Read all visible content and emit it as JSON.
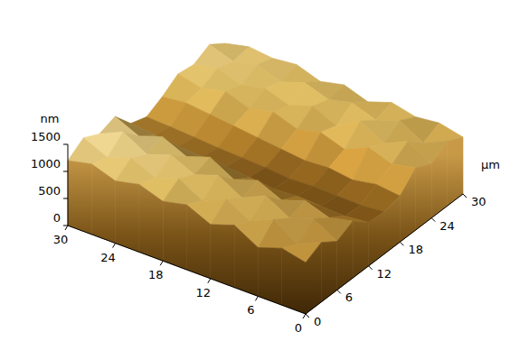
{
  "chart_data": {
    "type": "surface3d",
    "x_label": "µm",
    "z_label": "nm",
    "xlim": [
      0,
      30
    ],
    "xticks": [
      0,
      6,
      12,
      18,
      24,
      30
    ],
    "ylim": [
      0,
      30
    ],
    "yticks": [
      0,
      6,
      12,
      18,
      24,
      30
    ],
    "zlim": [
      0,
      1500
    ],
    "zticks": [
      0,
      500,
      1000,
      1500
    ],
    "x": [
      0,
      3,
      6,
      9,
      12,
      15,
      18,
      21,
      24,
      27,
      30
    ],
    "y": [
      0,
      3,
      6,
      9,
      12,
      15,
      18,
      21,
      24,
      27,
      30
    ],
    "z": [
      [
        950,
        1100,
        900,
        1050,
        800,
        780,
        850,
        1150,
        1000,
        1200,
        1050
      ],
      [
        1050,
        900,
        1150,
        950,
        760,
        740,
        900,
        1050,
        1250,
        1000,
        1150
      ],
      [
        900,
        1200,
        1000,
        1100,
        780,
        750,
        820,
        1200,
        1050,
        1250,
        1100
      ],
      [
        1150,
        1000,
        1250,
        950,
        800,
        760,
        880,
        1000,
        1300,
        1100,
        1200
      ],
      [
        1000,
        1250,
        1050,
        1150,
        770,
        740,
        850,
        1150,
        1050,
        1250,
        1050
      ],
      [
        1200,
        1050,
        1300,
        1000,
        820,
        780,
        900,
        1050,
        1250,
        1150,
        1200
      ],
      [
        1100,
        1300,
        1150,
        1250,
        850,
        800,
        950,
        1200,
        1100,
        1300,
        1100
      ],
      [
        1250,
        1150,
        1350,
        1100,
        880,
        820,
        1000,
        1100,
        1250,
        1150,
        1250
      ],
      [
        1150,
        1350,
        1200,
        1300,
        900,
        850,
        1050,
        1250,
        1150,
        1300,
        1200
      ],
      [
        1300,
        1200,
        1450,
        1150,
        950,
        880,
        1100,
        1150,
        1300,
        1200,
        1250
      ],
      [
        1200,
        1400,
        1250,
        1350,
        1000,
        900,
        1050,
        1250,
        1200,
        1350,
        1150
      ]
    ]
  }
}
